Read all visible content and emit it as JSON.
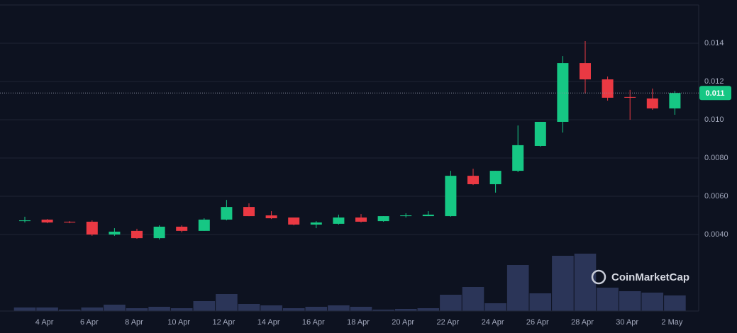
{
  "chart_data": {
    "type": "candlestick",
    "categories": [
      null,
      "4 Apr",
      null,
      "6 Apr",
      null,
      "8 Apr",
      null,
      "10 Apr",
      null,
      "12 Apr",
      null,
      "14 Apr",
      null,
      "16 Apr",
      null,
      "18 Apr",
      null,
      "20 Apr",
      null,
      "22 Apr",
      null,
      "24 Apr",
      null,
      "26 Apr",
      null,
      "28 Apr",
      null,
      "30 Apr",
      null,
      "2 May"
    ],
    "open": [
      0.0047,
      0.00478,
      0.00467,
      0.00467,
      0.004,
      0.00419,
      0.00381,
      0.00441,
      0.00419,
      0.00478,
      0.00544,
      0.005,
      0.00489,
      0.00452,
      0.00456,
      0.00489,
      0.0047,
      0.00496,
      0.00496,
      0.00496,
      0.00707,
      0.00663,
      0.00733,
      0.00863,
      0.00989,
      0.01296,
      0.01211,
      0.01119,
      0.01111,
      0.01059
    ],
    "high": [
      0.00493,
      0.00481,
      0.0047,
      0.00474,
      0.00433,
      0.0043,
      0.00448,
      0.00448,
      0.00485,
      0.00581,
      0.00563,
      0.00522,
      0.00489,
      0.0047,
      0.00504,
      0.00507,
      0.00496,
      0.00511,
      0.00522,
      0.00733,
      0.00744,
      0.00733,
      0.0097,
      0.00989,
      0.01333,
      0.01411,
      0.01226,
      0.01156,
      0.01163,
      0.0115
    ],
    "low": [
      0.00463,
      0.00459,
      0.00459,
      0.00393,
      0.00393,
      0.00378,
      0.00374,
      0.00411,
      0.00419,
      0.00474,
      0.00496,
      0.00481,
      0.00448,
      0.00433,
      0.00452,
      0.00463,
      0.00467,
      0.00489,
      0.00496,
      0.00493,
      0.00659,
      0.00619,
      0.00726,
      0.00859,
      0.00933,
      0.01137,
      0.011,
      0.01,
      0.01052,
      0.01026
    ],
    "close": [
      0.00474,
      0.00463,
      0.00463,
      0.004,
      0.00415,
      0.00381,
      0.00441,
      0.00419,
      0.00478,
      0.00544,
      0.00496,
      0.00485,
      0.00452,
      0.00463,
      0.00489,
      0.00467,
      0.00496,
      0.005,
      0.00504,
      0.00707,
      0.00663,
      0.00733,
      0.00867,
      0.00989,
      0.01296,
      0.01211,
      0.01115,
      0.01115,
      0.01059,
      0.0114
    ],
    "volume": [
      5,
      5,
      2,
      5,
      9,
      4,
      6,
      4,
      14,
      24,
      10,
      8,
      4,
      6,
      8,
      6,
      2,
      3,
      4,
      23,
      34,
      11,
      65,
      25,
      78,
      81,
      33,
      28,
      26,
      22
    ],
    "up_color": "#16c784",
    "down_color": "#ea3943",
    "volume_color": "#2b3558",
    "ylim": [
      0,
      0.016
    ],
    "yticks": [
      {
        "value": 0.004,
        "label": "0.0040"
      },
      {
        "value": 0.006,
        "label": "0.0060"
      },
      {
        "value": 0.008,
        "label": "0.0080"
      },
      {
        "value": 0.01,
        "label": "0.010"
      },
      0.012,
      0.014
    ],
    "y2lim": [
      0,
      100
    ],
    "price_label": "0.011",
    "grid": true,
    "watermark": "CoinMarketCap"
  }
}
